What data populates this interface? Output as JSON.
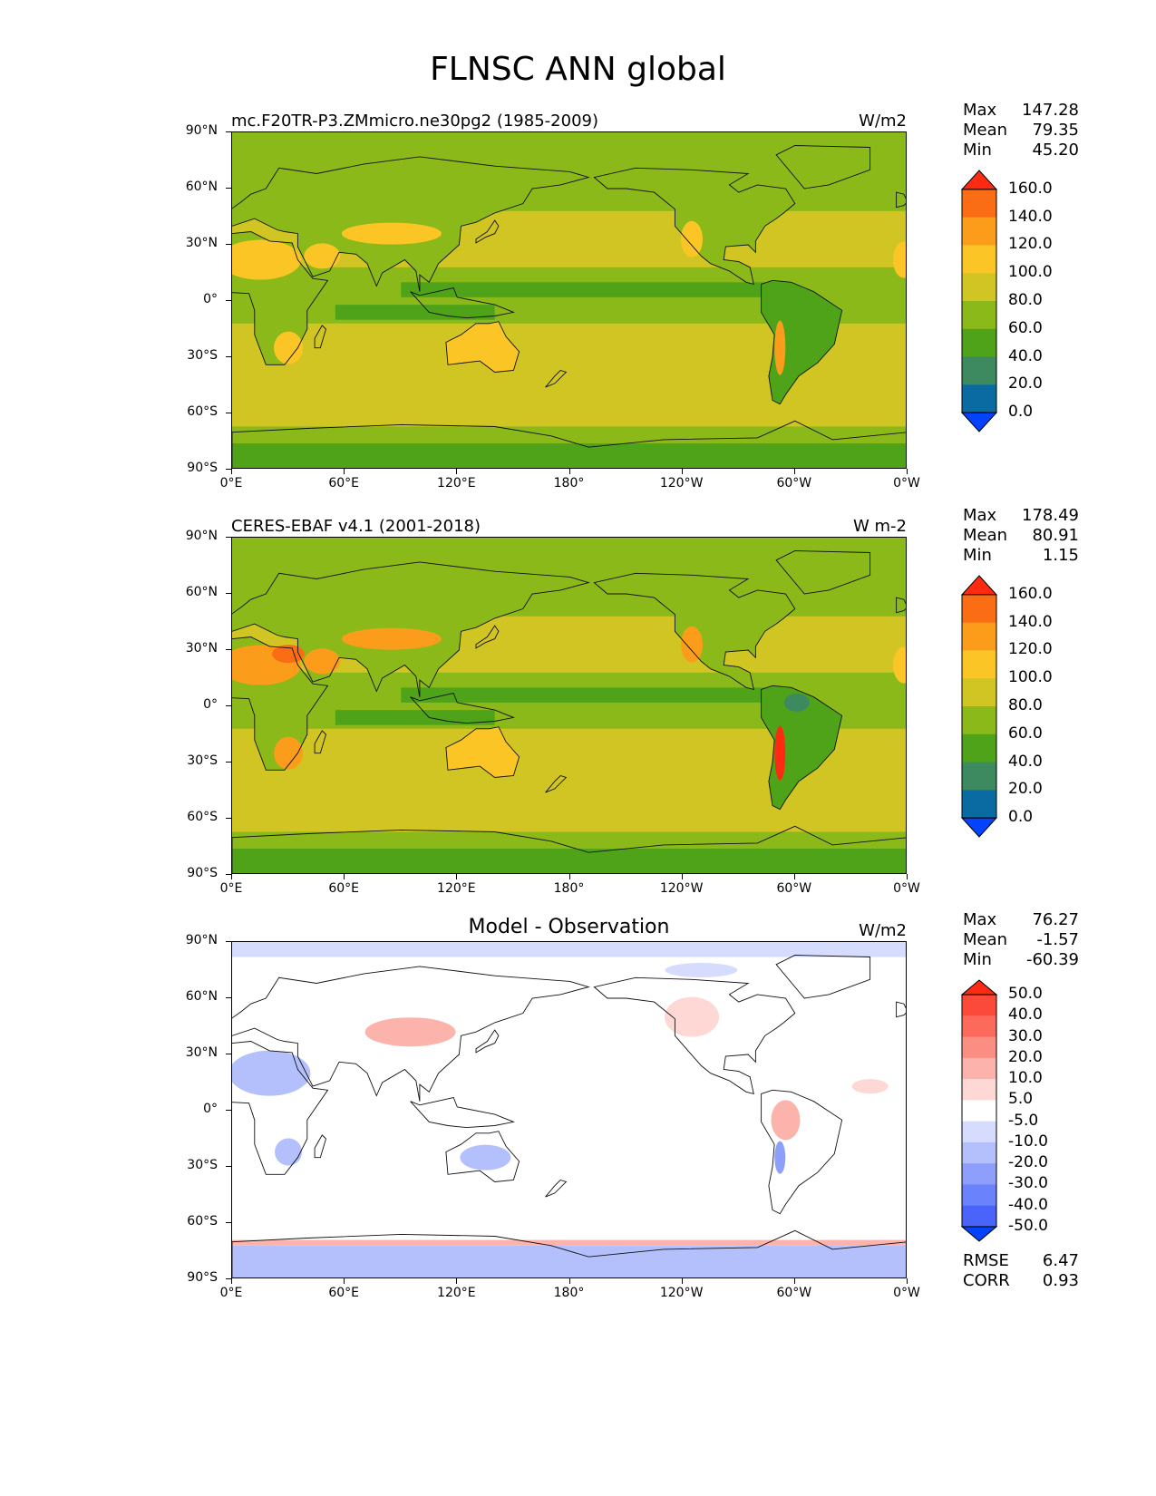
{
  "figure_title": "FLNSC ANN global",
  "lat_labels": [
    "90°N",
    "60°N",
    "30°N",
    "0°",
    "30°S",
    "60°S",
    "90°S"
  ],
  "lon_labels": [
    "0°E",
    "60°E",
    "120°E",
    "180°",
    "120°W",
    "60°W",
    "0°W"
  ],
  "panels": [
    {
      "title": "mc.F20TR-P3.ZMmicro.ne30pg2 (1985-2009)",
      "title_style": "left",
      "units": "W/m2",
      "stats": [
        {
          "label": "Max",
          "value": "147.28"
        },
        {
          "label": "Mean",
          "value": "79.35"
        },
        {
          "label": "Min",
          "value": "45.20"
        }
      ],
      "colorbar": {
        "levels": [
          "160.0",
          "140.0",
          "120.0",
          "100.0",
          "80.0",
          "60.0",
          "40.0",
          "20.0",
          "0.0"
        ],
        "colors": [
          "#fe2a12",
          "#fb6d14",
          "#fb9d1b",
          "#fbc526",
          "#d0c523",
          "#8cb91a",
          "#4fa319",
          "#3d8a60",
          "#0a6ba3",
          "#0443fe"
        ]
      }
    },
    {
      "title": "CERES-EBAF v4.1 (2001-2018)",
      "title_style": "left",
      "units": "W m-2",
      "stats": [
        {
          "label": "Max",
          "value": "178.49"
        },
        {
          "label": "Mean",
          "value": "80.91"
        },
        {
          "label": "Min",
          "value": "1.15"
        }
      ],
      "colorbar": {
        "levels": [
          "160.0",
          "140.0",
          "120.0",
          "100.0",
          "80.0",
          "60.0",
          "40.0",
          "20.0",
          "0.0"
        ],
        "colors": [
          "#fe2a12",
          "#fb6d14",
          "#fb9d1b",
          "#fbc526",
          "#d0c523",
          "#8cb91a",
          "#4fa319",
          "#3d8a60",
          "#0a6ba3",
          "#0443fe"
        ]
      }
    },
    {
      "title": "Model - Observation",
      "title_style": "center",
      "units": "W/m2",
      "stats": [
        {
          "label": "Max",
          "value": "76.27"
        },
        {
          "label": "Mean",
          "value": "-1.57"
        },
        {
          "label": "Min",
          "value": "-60.39"
        }
      ],
      "extra_stats": [
        {
          "label": "RMSE",
          "value": "6.47"
        },
        {
          "label": "CORR",
          "value": "0.93"
        }
      ],
      "colorbar": {
        "levels": [
          "50.0",
          "40.0",
          "30.0",
          "20.0",
          "10.0",
          "5.0",
          "-5.0",
          "-10.0",
          "-20.0",
          "-30.0",
          "-40.0",
          "-50.0"
        ],
        "colors": [
          "#fe2a12",
          "#fb4a3a",
          "#fb6a5a",
          "#fb8e82",
          "#fbb3ab",
          "#fdd8d4",
          "#ffffff",
          "#d5dcfd",
          "#b3c0fb",
          "#8e9ffb",
          "#6a82fb",
          "#4a64fb",
          "#0443fe"
        ]
      }
    }
  ]
}
